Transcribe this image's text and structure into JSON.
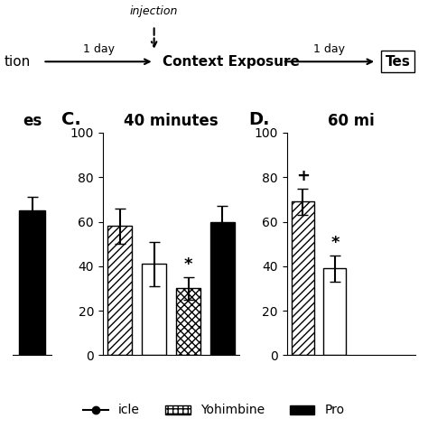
{
  "chart_data": [
    {
      "type": "bar",
      "title": "es",
      "categories": [
        null
      ],
      "values": [
        65
      ],
      "errors": [
        6
      ],
      "colors": [
        "#000000"
      ],
      "ylim": [
        0,
        100
      ],
      "tick_labels": false
    },
    {
      "type": "bar",
      "title": "40 minutes",
      "subtitle": "C.",
      "categories": [
        null,
        null,
        null,
        null
      ],
      "values": [
        58,
        41,
        30,
        60
      ],
      "errors": [
        8,
        10,
        5,
        7
      ],
      "colors": [
        "#ffffff",
        "#ffffff",
        "#ffffff",
        "#000000"
      ],
      "ylim": [
        0,
        100
      ],
      "yticks": [
        0,
        20,
        40,
        60,
        80,
        100
      ],
      "tick_labels": "y",
      "annotations": [
        {
          "text": "*",
          "index": 2
        }
      ]
    },
    {
      "type": "bar",
      "title": "60 mi",
      "subtitle": "D.",
      "categories": [
        null,
        null,
        null,
        null
      ],
      "values": [
        69,
        39,
        null,
        null
      ],
      "errors": [
        6,
        6,
        null,
        null
      ],
      "colors": [
        "#ffffff",
        "#ffffff",
        "#ffffff",
        "#ffffff"
      ],
      "ylim": [
        0,
        100
      ],
      "yticks": [
        0,
        20,
        40,
        60,
        80,
        100
      ],
      "tick_labels": "y",
      "annotations": [
        {
          "text": "+",
          "index": 0
        },
        {
          "text": "*",
          "index": 1
        }
      ]
    }
  ],
  "annotations": [
    "injection",
    "tion",
    "1 day",
    "Context Exposure",
    "1 day",
    "Tes"
  ],
  "series": [
    {
      "name": "icle",
      "type": "line",
      "marker": "circle",
      "line_style": "solid",
      "color": "#000000"
    },
    {
      "name": "Yohimbine",
      "type": "bar",
      "color": "#ffffff"
    },
    {
      "name": "Pro",
      "type": "bar",
      "color": "#000000"
    }
  ],
  "legend": "lower center"
}
